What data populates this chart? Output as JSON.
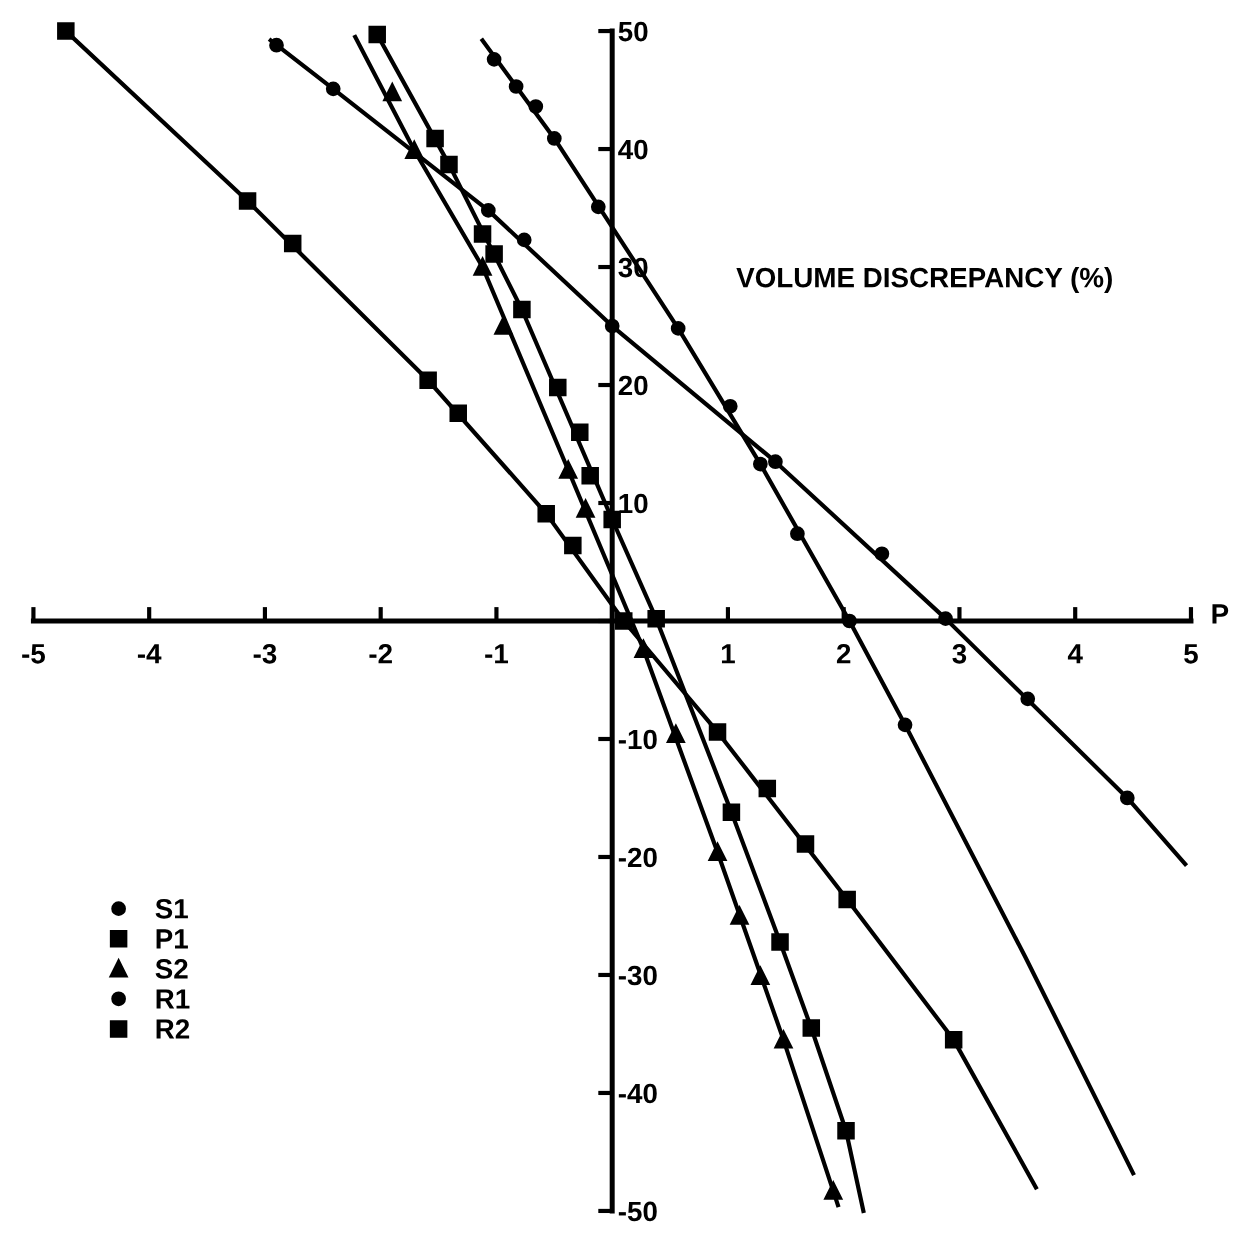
{
  "chart_data": {
    "type": "scatter",
    "xlabel": "P",
    "ylabel": "VOLUME DISCREPANCY (%)",
    "xlim": [
      -5,
      5
    ],
    "ylim": [
      -50,
      50
    ],
    "xticks": [
      -5,
      -4,
      -3,
      -2,
      -1,
      {
        "value": 0,
        "label": null
      },
      1,
      2,
      3,
      4,
      5
    ],
    "yticks": [
      -50,
      -40,
      -30,
      -20,
      -10,
      {
        "value": 0,
        "label": null
      },
      10,
      20,
      30,
      40,
      50
    ],
    "legend": "bottom left",
    "series": [
      {
        "name": "S1",
        "marker": "circle",
        "color": "#000000",
        "x": [
          -1.02,
          -0.83,
          -0.66,
          -0.5,
          -0.12,
          0.57,
          1.02,
          1.28,
          1.6,
          2.05,
          2.53
        ],
        "values": [
          47.6,
          45.3,
          43.6,
          40.9,
          35.1,
          24.8,
          18.2,
          13.3,
          7.4,
          0,
          -8.8
        ]
      },
      {
        "name": "P1",
        "marker": "square",
        "color": "#000000",
        "x": [
          -2.03,
          -1.53,
          -1.41,
          -1.12,
          -1.02,
          -0.78,
          -0.47,
          -0.28,
          -0.19,
          0,
          0.38,
          1.03,
          1.45,
          1.72,
          2.02
        ],
        "values": [
          49.7,
          40.9,
          38.7,
          32.8,
          31.1,
          26.4,
          19.8,
          16,
          12.3,
          8.6,
          0.2,
          -16.2,
          -27.2,
          -34.5,
          -43.2
        ]
      },
      {
        "name": "S2",
        "marker": "triangle",
        "color": "#000000",
        "x": [
          -1.9,
          -1.71,
          -1.12,
          -0.94,
          -0.38,
          -0.23,
          0.27,
          0.55,
          0.91,
          1.1,
          1.28,
          1.48,
          1.91
        ],
        "values": [
          44.8,
          39.9,
          30,
          25,
          12.8,
          9.5,
          -2.4,
          -9.6,
          -19.6,
          -25,
          -30.1,
          -35.5,
          -48.3
        ]
      },
      {
        "name": "R1",
        "marker": "circle",
        "color": "#000000",
        "x": [
          -2.9,
          -2.41,
          -1.07,
          -0.76,
          0,
          1.41,
          2.33,
          2.88,
          3.59,
          4.45
        ],
        "values": [
          48.8,
          45.1,
          34.8,
          32.3,
          25,
          13.5,
          5.7,
          0.2,
          -6.6,
          -15
        ]
      },
      {
        "name": "R2",
        "marker": "square",
        "color": "#000000",
        "x": [
          -4.72,
          -3.15,
          -2.76,
          -1.59,
          -1.33,
          -0.57,
          -0.34,
          0.1,
          0.91,
          1.34,
          1.67,
          2.03,
          2.95
        ],
        "values": [
          50,
          35.6,
          32,
          20.4,
          17.6,
          9.1,
          6.4,
          0,
          -9.4,
          -14.2,
          -18.9,
          -23.6,
          -35.5
        ]
      },
      {
        "type": "line",
        "color": "#000000",
        "x": [
          -1.12,
          -0.5,
          0.57,
          1.28,
          2.05,
          2.53,
          3.57,
          4.5
        ],
        "values": [
          49.2,
          40.9,
          24.8,
          13.3,
          0,
          -8.8,
          -28.5,
          -46.8
        ]
      },
      {
        "type": "line",
        "color": "#000000",
        "x": [
          -2.03,
          -1.41,
          -0.78,
          0,
          0.38,
          1.03,
          1.45,
          1.72,
          2.02,
          2.17
        ],
        "values": [
          49.7,
          38.7,
          26.4,
          8.6,
          0.2,
          -16.2,
          -27.2,
          -34.5,
          -43.2,
          -50
        ]
      },
      {
        "type": "line",
        "color": "#000000",
        "x": [
          -2.22,
          -1.71,
          -1.12,
          -0.38,
          0.27,
          0.91,
          1.48,
          1.95
        ],
        "values": [
          49.5,
          39.9,
          30,
          12.8,
          -2.4,
          -19.6,
          -35.5,
          -49.5
        ]
      },
      {
        "type": "line",
        "color": "#000000",
        "x": [
          -2.95,
          -2.41,
          -1.07,
          0,
          1.41,
          2.88,
          4.45,
          4.95
        ],
        "values": [
          49.2,
          45.1,
          34.8,
          25,
          13.5,
          0.2,
          -15,
          -20.6
        ]
      },
      {
        "type": "line",
        "color": "#000000",
        "x": [
          -4.72,
          -3.15,
          -1.59,
          -0.57,
          0.1,
          0.91,
          2.03,
          2.95,
          3.66
        ],
        "values": [
          50,
          35.6,
          20.4,
          9.1,
          0,
          -9.4,
          -23.6,
          -35.5,
          -48
        ]
      }
    ]
  }
}
